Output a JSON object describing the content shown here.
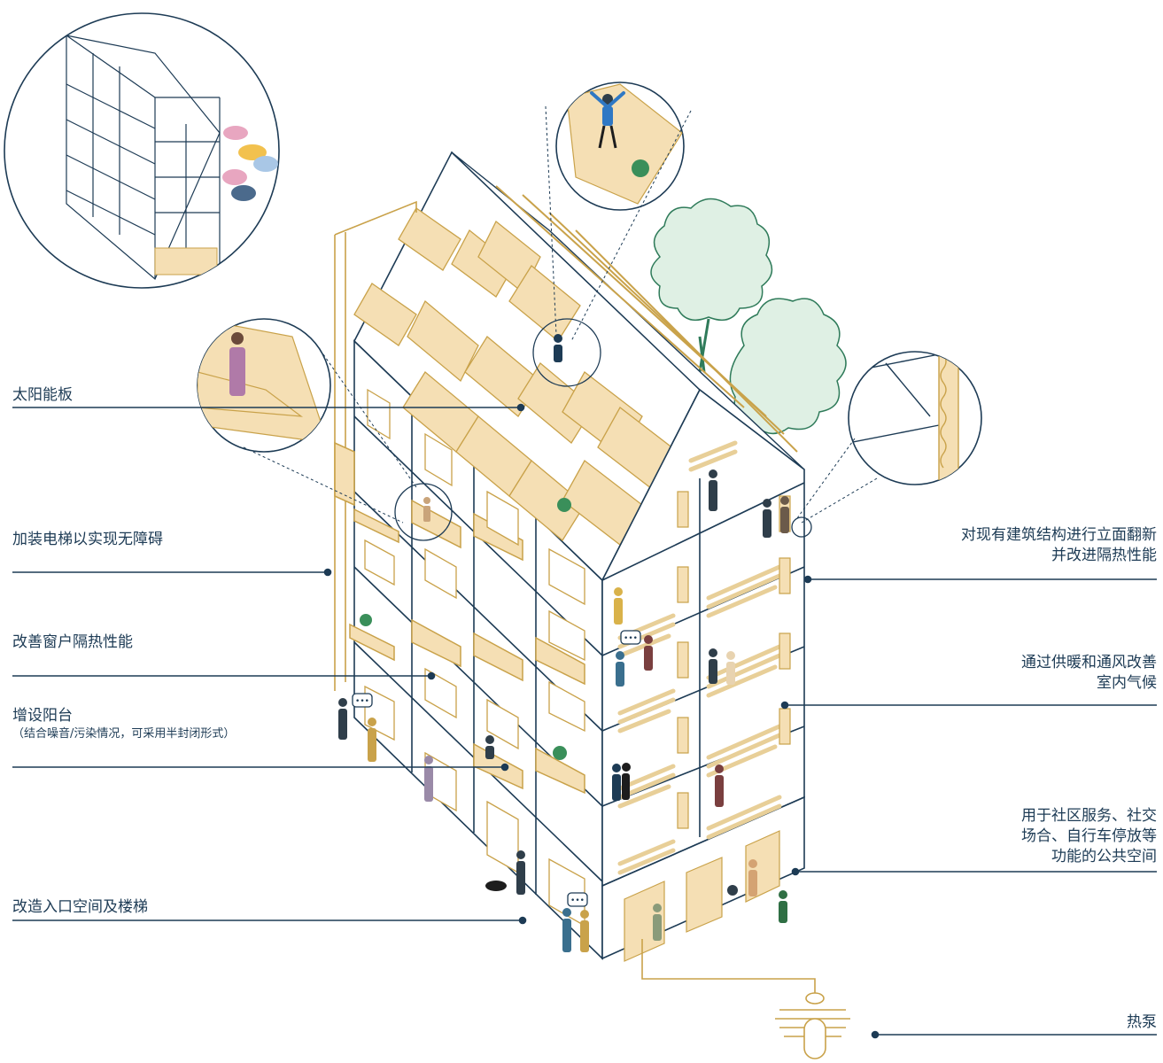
{
  "labels": {
    "solar": "太阳能板",
    "elevator": "加装电梯以实现无障碍",
    "window": "改善窗户隔热性能",
    "balcony": "增设阳台",
    "balcony_note": "（结合噪音/污染情况，可采用半封闭形式）",
    "entrance": "改造入口空间及楼梯",
    "facade_l1": "对现有建筑结构进行立面翻新",
    "facade_l2": "并改进隔热性能",
    "climate_l1": "通过供暖和通风改善",
    "climate_l2": "室内气候",
    "public_l1": "用于社区服务、社交",
    "public_l2": "场合、自行车停放等",
    "public_l3": "功能的公共空间",
    "heatpump": "热泵"
  },
  "speech_bubble": "•••",
  "colors": {
    "line": "#1d3b55",
    "accent": "#c9a24a",
    "fill": "#f5dfb4",
    "tree": "#2f7b5a",
    "tree_fill": "#dff0e4",
    "white": "#ffffff"
  }
}
